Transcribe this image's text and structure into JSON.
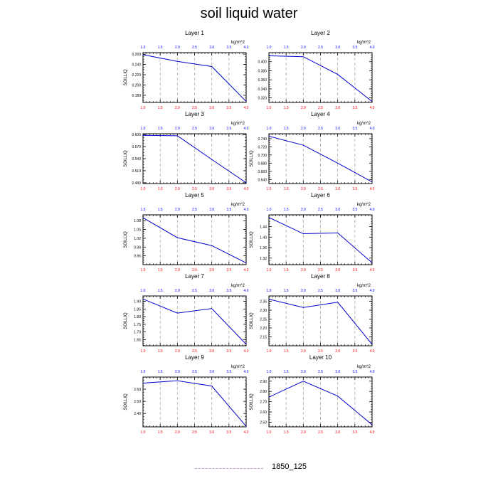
{
  "title": "soil liquid water",
  "legend": {
    "label": "1850_125",
    "color": "#c89ad6"
  },
  "colors": {
    "line": "#0000cc",
    "bottom_ticks": "#ff0000",
    "top_ticks": "#0000ff",
    "grid": "#aaaaaa"
  },
  "chart_data": [
    {
      "type": "line",
      "title": "Layer 1",
      "ylabel": "SOILLIQ",
      "unit": "kg/m^2",
      "xlim": [
        1.0,
        4.0
      ],
      "xticks": [
        "1.0",
        "1.5",
        "2.0",
        "2.5",
        "3.0",
        "3.5",
        "4.0"
      ],
      "ylim": [
        0.166,
        0.263
      ],
      "yticks": [
        "0.180",
        "0.200",
        "0.220",
        "0.240",
        "0.260"
      ],
      "x": [
        1.0,
        2.0,
        3.0,
        4.0
      ],
      "y": [
        0.259,
        0.246,
        0.236,
        0.168
      ]
    },
    {
      "type": "line",
      "title": "Layer 2",
      "ylabel": "",
      "unit": "kg/m^2",
      "xlim": [
        1.0,
        4.0
      ],
      "xticks": [
        "1.0",
        "1.5",
        "2.0",
        "2.5",
        "3.0",
        "3.5",
        "4.0"
      ],
      "ylim": [
        0.31,
        0.42
      ],
      "yticks": [
        "0.320",
        "0.340",
        "0.360",
        "0.380",
        "0.400"
      ],
      "x": [
        1.0,
        2.0,
        3.0,
        4.0
      ],
      "y": [
        0.413,
        0.411,
        0.372,
        0.312
      ]
    },
    {
      "type": "line",
      "title": "Layer 3",
      "ylabel": "SOILLIQ",
      "unit": "kg/m^2",
      "xlim": [
        1.0,
        4.0
      ],
      "xticks": [
        "1.0",
        "1.5",
        "2.0",
        "2.5",
        "3.0",
        "3.5",
        "4.0"
      ],
      "ylim": [
        0.478,
        0.602
      ],
      "yticks": [
        "0.480",
        "0.510",
        "0.540",
        "0.570",
        "0.600"
      ],
      "x": [
        1.0,
        2.0,
        3.0,
        4.0
      ],
      "y": [
        0.598,
        0.597,
        0.538,
        0.48
      ]
    },
    {
      "type": "line",
      "title": "Layer 4",
      "ylabel": "SOILLIQ",
      "unit": "kg/m^2",
      "xlim": [
        1.0,
        4.0
      ],
      "xticks": [
        "1.0",
        "1.5",
        "2.0",
        "2.5",
        "3.0",
        "3.5",
        "4.0"
      ],
      "ylim": [
        0.63,
        0.752
      ],
      "yticks": [
        "0.640",
        "0.660",
        "0.680",
        "0.700",
        "0.720",
        "0.740"
      ],
      "x": [
        1.0,
        2.0,
        3.0,
        4.0
      ],
      "y": [
        0.746,
        0.724,
        0.68,
        0.634
      ]
    },
    {
      "type": "line",
      "title": "Layer 5",
      "ylabel": "SOILLIQ",
      "unit": "kg/m^2",
      "xlim": [
        1.0,
        4.0
      ],
      "xticks": [
        "1.0",
        "1.5",
        "2.0",
        "2.5",
        "3.0",
        "3.5",
        "4.0"
      ],
      "ylim": [
        0.93,
        1.1
      ],
      "yticks": [
        "0.96",
        "0.99",
        "1.02",
        "1.05",
        "1.08"
      ],
      "x": [
        1.0,
        2.0,
        3.0,
        4.0
      ],
      "y": [
        1.09,
        1.022,
        0.995,
        0.936
      ]
    },
    {
      "type": "line",
      "title": "Layer 6",
      "ylabel": "SOILLIQ",
      "unit": "kg/m^2",
      "xlim": [
        1.0,
        4.0
      ],
      "xticks": [
        "1.0",
        "1.5",
        "2.0",
        "2.5",
        "3.0",
        "3.5",
        "4.0"
      ],
      "ylim": [
        1.295,
        1.485
      ],
      "yticks": [
        "1.32",
        "1.36",
        "1.40",
        "1.44"
      ],
      "x": [
        1.0,
        2.0,
        3.0,
        4.0
      ],
      "y": [
        1.475,
        1.413,
        1.416,
        1.302
      ]
    },
    {
      "type": "line",
      "title": "Layer 7",
      "ylabel": "SOILLIQ",
      "unit": "kg/m^2",
      "xlim": [
        1.0,
        4.0
      ],
      "xticks": [
        "1.0",
        "1.5",
        "2.0",
        "2.5",
        "3.0",
        "3.5",
        "4.0"
      ],
      "ylim": [
        1.61,
        1.935
      ],
      "yticks": [
        "1.65",
        "1.70",
        "1.75",
        "1.80",
        "1.85",
        "1.90"
      ],
      "x": [
        1.0,
        2.0,
        3.0,
        4.0
      ],
      "y": [
        1.915,
        1.823,
        1.853,
        1.62
      ]
    },
    {
      "type": "line",
      "title": "Layer 8",
      "ylabel": "SOILLIQ",
      "unit": "kg/m^2",
      "xlim": [
        1.0,
        4.0
      ],
      "xticks": [
        "1.0",
        "1.5",
        "2.0",
        "2.5",
        "3.0",
        "3.5",
        "4.0"
      ],
      "ylim": [
        2.1,
        2.38
      ],
      "yticks": [
        "2.15",
        "2.20",
        "2.25",
        "2.30",
        "2.35"
      ],
      "x": [
        1.0,
        2.0,
        3.0,
        4.0
      ],
      "y": [
        2.362,
        2.315,
        2.345,
        2.108
      ]
    },
    {
      "type": "line",
      "title": "Layer 9",
      "ylabel": "SOILLIQ",
      "unit": "kg/m^2",
      "xlim": [
        1.0,
        4.0
      ],
      "xticks": [
        "1.0",
        "1.5",
        "2.0",
        "2.5",
        "3.0",
        "3.5",
        "4.0"
      ],
      "ylim": [
        2.29,
        2.7
      ],
      "yticks": [
        "2.40",
        "2.50",
        "2.60"
      ],
      "x": [
        1.0,
        2.0,
        3.0,
        4.0
      ],
      "y": [
        2.65,
        2.67,
        2.626,
        2.295
      ]
    },
    {
      "type": "line",
      "title": "Layer 10",
      "ylabel": "SOILLIQ",
      "unit": "kg/m^2",
      "xlim": [
        1.0,
        4.0
      ],
      "xticks": [
        "1.0",
        "1.5",
        "2.0",
        "2.5",
        "3.0",
        "3.5",
        "4.0"
      ],
      "ylim": [
        2.455,
        2.94
      ],
      "yticks": [
        "2.50",
        "2.60",
        "2.70",
        "2.80",
        "2.90"
      ],
      "x": [
        1.0,
        2.0,
        3.0,
        4.0
      ],
      "y": [
        2.745,
        2.9,
        2.755,
        2.475
      ]
    }
  ]
}
